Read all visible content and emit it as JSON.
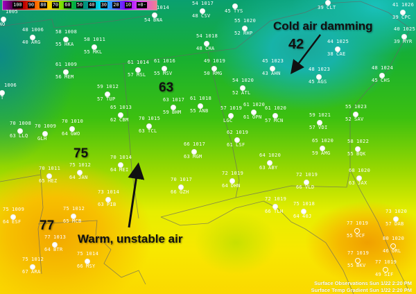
{
  "legend": {
    "labels": [
      "100",
      "90",
      "80",
      "70",
      "60",
      "50",
      "40",
      "30",
      "20",
      "10",
      "+0-"
    ]
  },
  "annotations": {
    "cold_air": "Cold air damming",
    "cold_temp": "42",
    "temp_63": "63",
    "temp_75": "75",
    "temp_77": "77",
    "warm_air": "Warm, unstable air"
  },
  "captions": {
    "observations": "Surface Observations  Sun 1/22 2:20 PM",
    "gradient": "Surface Temp Gradient  Sun 1/22 2:20 PM"
  },
  "colors": {
    "cold": "#17b3a8",
    "mild": "#18b030",
    "warm": "#f8e800",
    "hot": "#f0a000"
  },
  "stations": [
    {
      "t": "",
      "p": "1005",
      "d": "",
      "id": "VNO"
    },
    {
      "t": "48",
      "p": "1006",
      "d": "40",
      "id": "ARG"
    },
    {
      "t": "58",
      "p": "1008",
      "d": "55",
      "id": "HKA"
    },
    {
      "t": "58",
      "p": "1011",
      "d": "55",
      "id": "MKL"
    },
    {
      "t": "61",
      "p": "1009",
      "d": "56",
      "id": "MEM"
    },
    {
      "t": "",
      "p": "1006",
      "d": "",
      "id": "LIT"
    },
    {
      "t": "59",
      "p": "1012",
      "d": "57",
      "id": "TUP"
    },
    {
      "t": "61",
      "p": "1014",
      "d": "57",
      "id": "MSL"
    },
    {
      "t": "",
      "p": "1014",
      "d": "54",
      "id": "BNA"
    },
    {
      "t": "61",
      "p": "1016",
      "d": "55",
      "id": "MSV"
    },
    {
      "t": "54",
      "p": "1017",
      "d": "48",
      "id": "CSV"
    },
    {
      "t": "54",
      "p": "1018",
      "d": "48",
      "id": "CHA"
    },
    {
      "t": "63",
      "p": "1017",
      "d": "59",
      "id": "BHM"
    },
    {
      "t": "61",
      "p": "1018",
      "d": "55",
      "id": "ANB"
    },
    {
      "t": "54",
      "p": "1019",
      "d": "45",
      "id": "TYS"
    },
    {
      "t": "",
      "p": "",
      "d": "39",
      "id": "CLT"
    },
    {
      "t": "41",
      "p": "1026",
      "d": "39",
      "id": "CPC"
    },
    {
      "t": "55",
      "p": "1020",
      "d": "52",
      "id": "RHP"
    },
    {
      "t": "40",
      "p": "1025",
      "d": "39",
      "id": "MYR"
    },
    {
      "t": "44",
      "p": "1025",
      "d": "38",
      "id": "CAE"
    },
    {
      "t": "49",
      "p": "1019",
      "d": "50",
      "id": "RMG"
    },
    {
      "t": "45",
      "p": "1023",
      "d": "43",
      "id": "AHN"
    },
    {
      "t": "48",
      "p": "1023",
      "d": "45",
      "id": "AGS"
    },
    {
      "t": "48",
      "p": "1024",
      "d": "45",
      "id": "CHS"
    },
    {
      "t": "54",
      "p": "1020",
      "d": "52",
      "id": "ATL"
    },
    {
      "t": "70",
      "p": "1008",
      "d": "63",
      "id": "LLQ"
    },
    {
      "t": "70",
      "p": "1009",
      "d": "",
      "id": "GLH"
    },
    {
      "t": "70",
      "p": "1010",
      "d": "64",
      "id": "GWO"
    },
    {
      "t": "65",
      "p": "1013",
      "d": "62",
      "id": "CBM"
    },
    {
      "t": "70",
      "p": "1015",
      "d": "63",
      "id": "TCL"
    },
    {
      "t": "66",
      "p": "1017",
      "d": "63",
      "id": "MGM"
    },
    {
      "t": "70",
      "p": "1014",
      "d": "64",
      "id": "MEI"
    },
    {
      "t": "75",
      "p": "1012",
      "d": "64",
      "id": "JAN"
    },
    {
      "t": "70",
      "p": "1011",
      "d": "65",
      "id": "HEZ"
    },
    {
      "t": "73",
      "p": "1014",
      "d": "63",
      "id": "PIB"
    },
    {
      "t": "70",
      "p": "1017",
      "d": "66",
      "id": "GZH"
    },
    {
      "t": "57",
      "p": "1019",
      "d": "",
      "id": "LGC"
    },
    {
      "t": "61",
      "p": "1020",
      "d": "61",
      "id": "OPN"
    },
    {
      "t": "61",
      "p": "1020",
      "d": "57",
      "id": "MCN"
    },
    {
      "t": "59",
      "p": "1021",
      "d": "57",
      "id": "VDI"
    },
    {
      "t": "55",
      "p": "1023",
      "d": "52",
      "id": "SAV"
    },
    {
      "t": "62",
      "p": "1019",
      "d": "61",
      "id": "LSF"
    },
    {
      "t": "65",
      "p": "1020",
      "d": "59",
      "id": "AMG"
    },
    {
      "t": "58",
      "p": "1022",
      "d": "55",
      "id": "BQK"
    },
    {
      "t": "64",
      "p": "1020",
      "d": "63",
      "id": "ABY"
    },
    {
      "t": "72",
      "p": "1019",
      "d": "64",
      "id": "DHN"
    },
    {
      "t": "72",
      "p": "1019",
      "d": "66",
      "id": "VLD"
    },
    {
      "t": "68",
      "p": "1020",
      "d": "63",
      "id": "JAX"
    },
    {
      "t": "75",
      "p": "1009",
      "d": "64",
      "id": "ESF"
    },
    {
      "t": "75",
      "p": "1012",
      "d": "65",
      "id": "MCB"
    },
    {
      "t": "77",
      "p": "1013",
      "d": "64",
      "id": "BTR"
    },
    {
      "t": "75",
      "p": "1014",
      "d": "66",
      "id": "MSY"
    },
    {
      "t": "75",
      "p": "1012",
      "d": "67",
      "id": "ARA"
    },
    {
      "t": "72",
      "p": "1019",
      "d": "66",
      "id": "TLH"
    },
    {
      "t": "75",
      "p": "1018",
      "d": "64",
      "id": "40J"
    },
    {
      "t": "73",
      "p": "1020",
      "d": "57",
      "id": "DAB"
    },
    {
      "t": "77",
      "p": "1019",
      "d": "55",
      "id": "OCF"
    },
    {
      "t": "80",
      "p": "1020",
      "d": "46",
      "id": "ORL"
    },
    {
      "t": "77",
      "p": "1019",
      "d": "55",
      "id": "BKV"
    },
    {
      "t": "77",
      "p": "1019",
      "d": "49",
      "id": "SIF"
    }
  ]
}
